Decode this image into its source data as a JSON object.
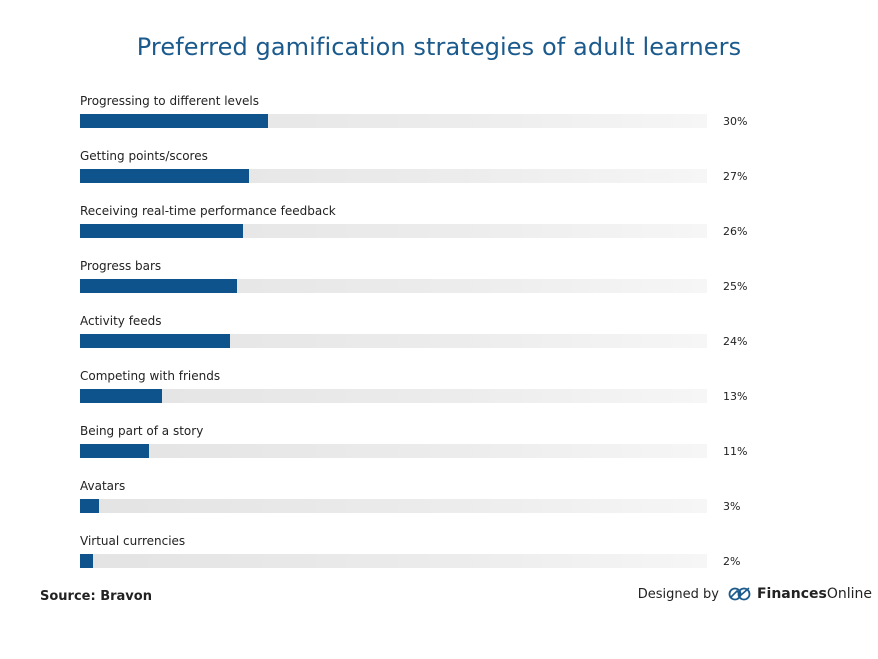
{
  "chart_data": {
    "type": "bar",
    "orientation": "horizontal",
    "title": "Preferred gamification strategies of adult learners",
    "xlim": [
      0,
      100
    ],
    "grid": false,
    "categories": [
      "Progressing to different levels",
      "Getting points/scores",
      "Receiving real-time performance feedback",
      "Progress bars",
      "Activity feeds",
      "Competing with friends",
      "Being part of a story",
      "Avatars",
      "Virtual currencies"
    ],
    "values": [
      30,
      27,
      26,
      25,
      24,
      13,
      11,
      3,
      2
    ],
    "value_labels": [
      "30%",
      "27%",
      "26%",
      "25%",
      "24%",
      "13%",
      "11%",
      "3%",
      "2%"
    ],
    "colors": {
      "bar": "#0f538d",
      "track": "#e3e3e3",
      "title": "#1b5a8c"
    }
  },
  "footer": {
    "source": "Source: Bravon",
    "designed_by": "Designed by",
    "brand_bold": "Finances",
    "brand_regular": "Online",
    "logo_icon": "finances-online-logo-icon"
  }
}
